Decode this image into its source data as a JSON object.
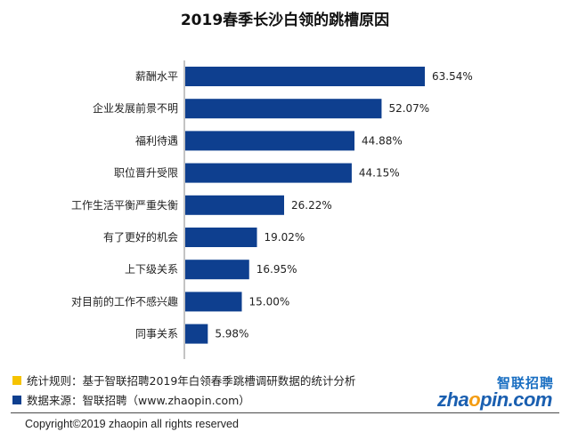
{
  "colors": {
    "bar": "#0e3f8f",
    "yellow_marker": "#f6c300",
    "blue_marker": "#0e3f8f"
  },
  "chart_data": {
    "type": "bar",
    "orientation": "horizontal",
    "title": "2019春季长沙白领的跳槽原因",
    "categories": [
      "薪酬水平",
      "企业发展前景不明",
      "福利待遇",
      "职位晋升受限",
      "工作生活平衡严重失衡",
      "有了更好的机会",
      "上下级关系",
      "对目前的工作不感兴趣",
      "同事关系"
    ],
    "values": [
      63.54,
      52.07,
      44.88,
      44.15,
      26.22,
      19.02,
      16.95,
      15.0,
      5.98
    ],
    "value_labels": [
      "63.54%",
      "52.07%",
      "44.88%",
      "44.15%",
      "26.22%",
      "19.02%",
      "16.95%",
      "15.00%",
      "5.98%"
    ],
    "xlim": [
      0,
      63.54
    ],
    "grid": false,
    "legend": "none"
  },
  "notes": {
    "rule": "统计规则：基于智联招聘2019年白领春季跳槽调研数据的统计分析",
    "source": "数据来源：智联招聘（www.zhaopin.com）"
  },
  "logo": {
    "cn": "智联招聘",
    "en_prefix": "zha",
    "en_dot": "o",
    "en_suffix": "pin.com"
  },
  "copyright": "Copyright©2019 zhaopin all rights reserved"
}
